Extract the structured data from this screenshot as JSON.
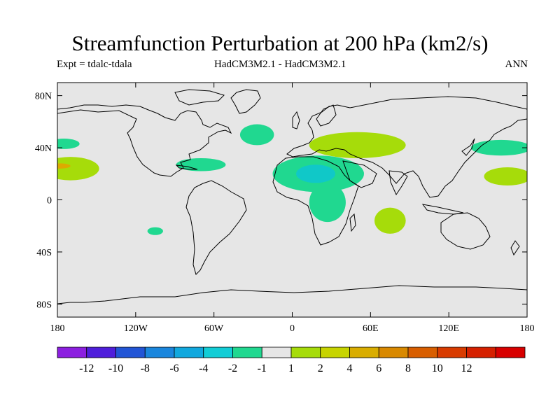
{
  "header": {
    "title": "Streamfunction Perturbation at 200 hPa (km2/s)",
    "experiment": "Expt = tdalc-tdala",
    "model": "HadCM3M2.1 - HadCM3M2.1",
    "period": "ANN"
  },
  "map": {
    "projection": "cylindrical equidistant",
    "background_color": "#e6e6e6",
    "lon_range": [
      -180,
      180
    ],
    "lat_range": [
      -90,
      90
    ],
    "lat_ticks": [
      {
        "lat": 80,
        "label": "80N"
      },
      {
        "lat": 40,
        "label": "40N"
      },
      {
        "lat": 0,
        "label": "0"
      },
      {
        "lat": -40,
        "label": "40S"
      },
      {
        "lat": -80,
        "label": "80S"
      }
    ],
    "lon_ticks": [
      {
        "lon": -180,
        "label": "180"
      },
      {
        "lon": -120,
        "label": "120W"
      },
      {
        "lon": -60,
        "label": "60W"
      },
      {
        "lon": 0,
        "label": "0"
      },
      {
        "lon": 60,
        "label": "60E"
      },
      {
        "lon": 120,
        "label": "120E"
      },
      {
        "lon": 180,
        "label": "180"
      }
    ],
    "anomaly_regions": [
      {
        "name": "North Africa / Arabia",
        "lon": 20,
        "lat": 20,
        "rx_deg": 35,
        "ry_deg": 14,
        "color": "#20d890"
      },
      {
        "name": "Sahara core",
        "lon": 18,
        "lat": 20,
        "rx_deg": 15,
        "ry_deg": 7,
        "color": "#10c8c8"
      },
      {
        "name": "Central Africa",
        "lon": 27,
        "lat": -2,
        "rx_deg": 14,
        "ry_deg": 15,
        "color": "#20d890"
      },
      {
        "name": "North Atlantic",
        "lon": -27,
        "lat": 50,
        "rx_deg": 13,
        "ry_deg": 8,
        "color": "#20d890"
      },
      {
        "name": "Caribbean",
        "lon": -70,
        "lat": 27,
        "rx_deg": 19,
        "ry_deg": 5,
        "color": "#20d890"
      },
      {
        "name": "Central Pacific (north)",
        "lon": -175,
        "lat": 43,
        "rx_deg": 12,
        "ry_deg": 4,
        "color": "#20d890"
      },
      {
        "name": "South Pacific",
        "lon": -105,
        "lat": -24,
        "rx_deg": 6,
        "ry_deg": 3,
        "color": "#20d890"
      },
      {
        "name": "West Pacific (north)",
        "lon": 160,
        "lat": 40,
        "rx_deg": 23,
        "ry_deg": 6,
        "color": "#20d890"
      },
      {
        "name": "West Pacific (subtropical)",
        "lon": 165,
        "lat": 18,
        "rx_deg": 18,
        "ry_deg": 7,
        "color": "#a6dc0a"
      },
      {
        "name": "Mediterranean / Middle East",
        "lon": 50,
        "lat": 42,
        "rx_deg": 37,
        "ry_deg": 10,
        "color": "#a6dc0a"
      },
      {
        "name": "Indian Ocean",
        "lon": 75,
        "lat": -16,
        "rx_deg": 12,
        "ry_deg": 10,
        "color": "#a6dc0a"
      },
      {
        "name": "East Pacific",
        "lon": -170,
        "lat": 24,
        "rx_deg": 22,
        "ry_deg": 9,
        "color": "#a6dc0a"
      },
      {
        "name": "East Pacific core",
        "lon": -178,
        "lat": 26,
        "rx_deg": 8,
        "ry_deg": 2,
        "color": "#ddaa00"
      }
    ]
  },
  "colorbar": {
    "colors": [
      "#8c1fe0",
      "#4f1edb",
      "#2255d6",
      "#1a86dd",
      "#11a8de",
      "#12cdd6",
      "#20d890",
      "#e6e6e6",
      "#a6dc0a",
      "#c7d400",
      "#d9ad00",
      "#d98900",
      "#d85e00",
      "#d83b00",
      "#d52000",
      "#d80000"
    ],
    "labels": [
      "-12",
      "-10",
      "-8",
      "-6",
      "-4",
      "-2",
      "-1",
      "1",
      "2",
      "4",
      "6",
      "8",
      "10",
      "12"
    ]
  }
}
